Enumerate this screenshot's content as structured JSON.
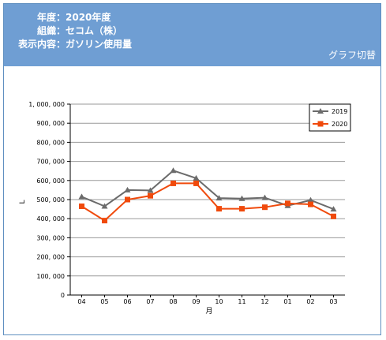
{
  "header": {
    "rows": [
      {
        "label": "年度",
        "sep": "：",
        "value": "2020年度"
      },
      {
        "label": "組織",
        "sep": "：",
        "value": "セコム（株）"
      },
      {
        "label": "表示内容",
        "sep": "：",
        "value": "ガソリン使用量"
      }
    ],
    "switch_label": "グラフ切替"
  },
  "colors": {
    "header_bg": "#6f9ed3",
    "series_2019": "#6b6b6b",
    "series_2020": "#f04a0c"
  },
  "chart_data": {
    "type": "line",
    "categories": [
      "04",
      "05",
      "06",
      "07",
      "08",
      "09",
      "10",
      "11",
      "12",
      "01",
      "02",
      "03"
    ],
    "series": [
      {
        "name": "2019",
        "marker": "triangle",
        "values": [
          515000,
          465000,
          550000,
          548000,
          652000,
          612000,
          508000,
          505000,
          510000,
          468000,
          497000,
          450000
        ]
      },
      {
        "name": "2020",
        "marker": "square",
        "values": [
          465000,
          390000,
          500000,
          520000,
          585000,
          585000,
          452000,
          452000,
          460000,
          480000,
          475000,
          412000
        ]
      }
    ],
    "yticks": [
      "0",
      "100, 000",
      "200, 000",
      "300, 000",
      "400, 000",
      "500, 000",
      "600, 000",
      "700, 000",
      "800, 000",
      "900, 000",
      "1, 000, 000"
    ],
    "ylim": [
      0,
      1000000
    ],
    "xlabel": "月",
    "ylabel": "L",
    "grid": true,
    "legend": "top-right"
  }
}
